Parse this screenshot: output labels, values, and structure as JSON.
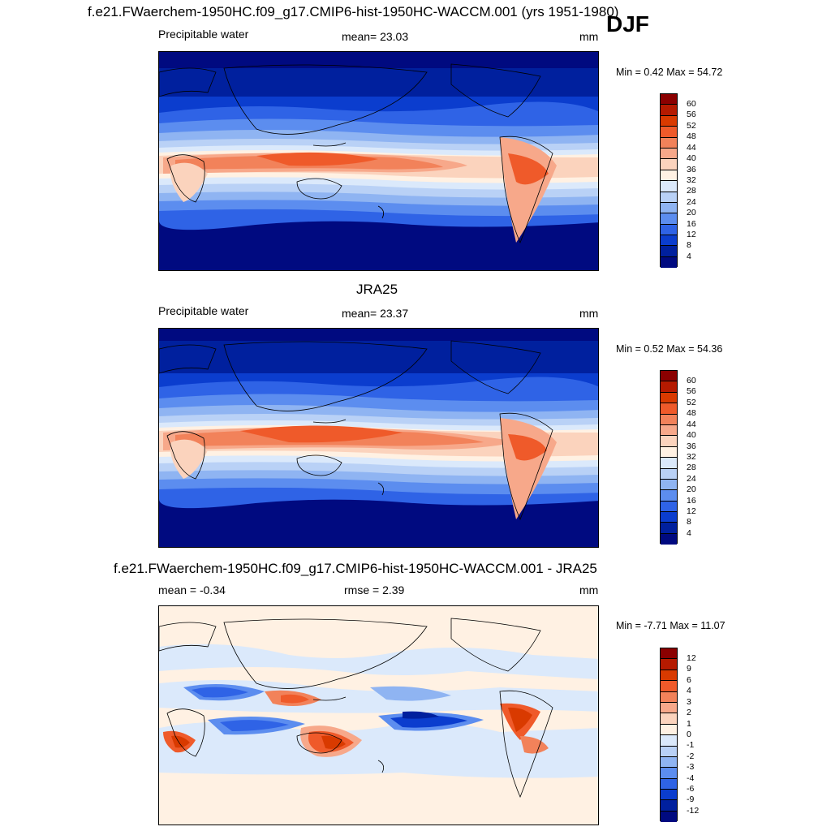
{
  "season": "DJF",
  "panels": [
    {
      "title": "f.e21.FWaerchem-1950HC.f09_g17.CMIP6-hist-1950HC-WACCM.001 (yrs 1951-1980)",
      "left_label": "Precipitable water",
      "center_label": "mean=  23.03",
      "units": "mm",
      "minmax": "Min =   0.42 Max =  54.72",
      "colorbar": {
        "labels": [
          "60",
          "56",
          "52",
          "48",
          "44",
          "40",
          "36",
          "32",
          "28",
          "24",
          "20",
          "16",
          "12",
          "8",
          "4"
        ],
        "colors": [
          "#8b0000",
          "#b51a00",
          "#d93a00",
          "#ef5a2a",
          "#f2825a",
          "#f7a88a",
          "#fbd3bd",
          "#fff1e3",
          "#dbe9fb",
          "#b9d1f6",
          "#8fb4f2",
          "#5c8def",
          "#2f63e6",
          "#0b3dce",
          "#00209e",
          "#000a80"
        ]
      }
    },
    {
      "title": "JRA25",
      "left_label": "Precipitable water",
      "center_label": "mean=  23.37",
      "units": "mm",
      "minmax": "Min =   0.52 Max =  54.36",
      "colorbar": {
        "labels": [
          "60",
          "56",
          "52",
          "48",
          "44",
          "40",
          "36",
          "32",
          "28",
          "24",
          "20",
          "16",
          "12",
          "8",
          "4"
        ],
        "colors": [
          "#8b0000",
          "#b51a00",
          "#d93a00",
          "#ef5a2a",
          "#f2825a",
          "#f7a88a",
          "#fbd3bd",
          "#fff1e3",
          "#dbe9fb",
          "#b9d1f6",
          "#8fb4f2",
          "#5c8def",
          "#2f63e6",
          "#0b3dce",
          "#00209e",
          "#000a80"
        ]
      }
    },
    {
      "title": "f.e21.FWaerchem-1950HC.f09_g17.CMIP6-hist-1950HC-WACCM.001 - JRA25",
      "left_label": "mean =  -0.34",
      "center_label": "rmse =    2.39",
      "units": "mm",
      "minmax": "Min =  -7.71 Max =  11.07",
      "colorbar": {
        "labels": [
          "12",
          "9",
          "6",
          "4",
          "3",
          "2",
          "1",
          "0",
          "-1",
          "-2",
          "-3",
          "-4",
          "-6",
          "-9",
          "-12"
        ],
        "colors": [
          "#8b0000",
          "#b51a00",
          "#d93a00",
          "#ef5a2a",
          "#f2825a",
          "#f7a88a",
          "#fbd3bd",
          "#fff1e3",
          "#dbe9fb",
          "#b9d1f6",
          "#8fb4f2",
          "#5c8def",
          "#2f63e6",
          "#0b3dce",
          "#00209e",
          "#000a80"
        ]
      }
    }
  ]
}
